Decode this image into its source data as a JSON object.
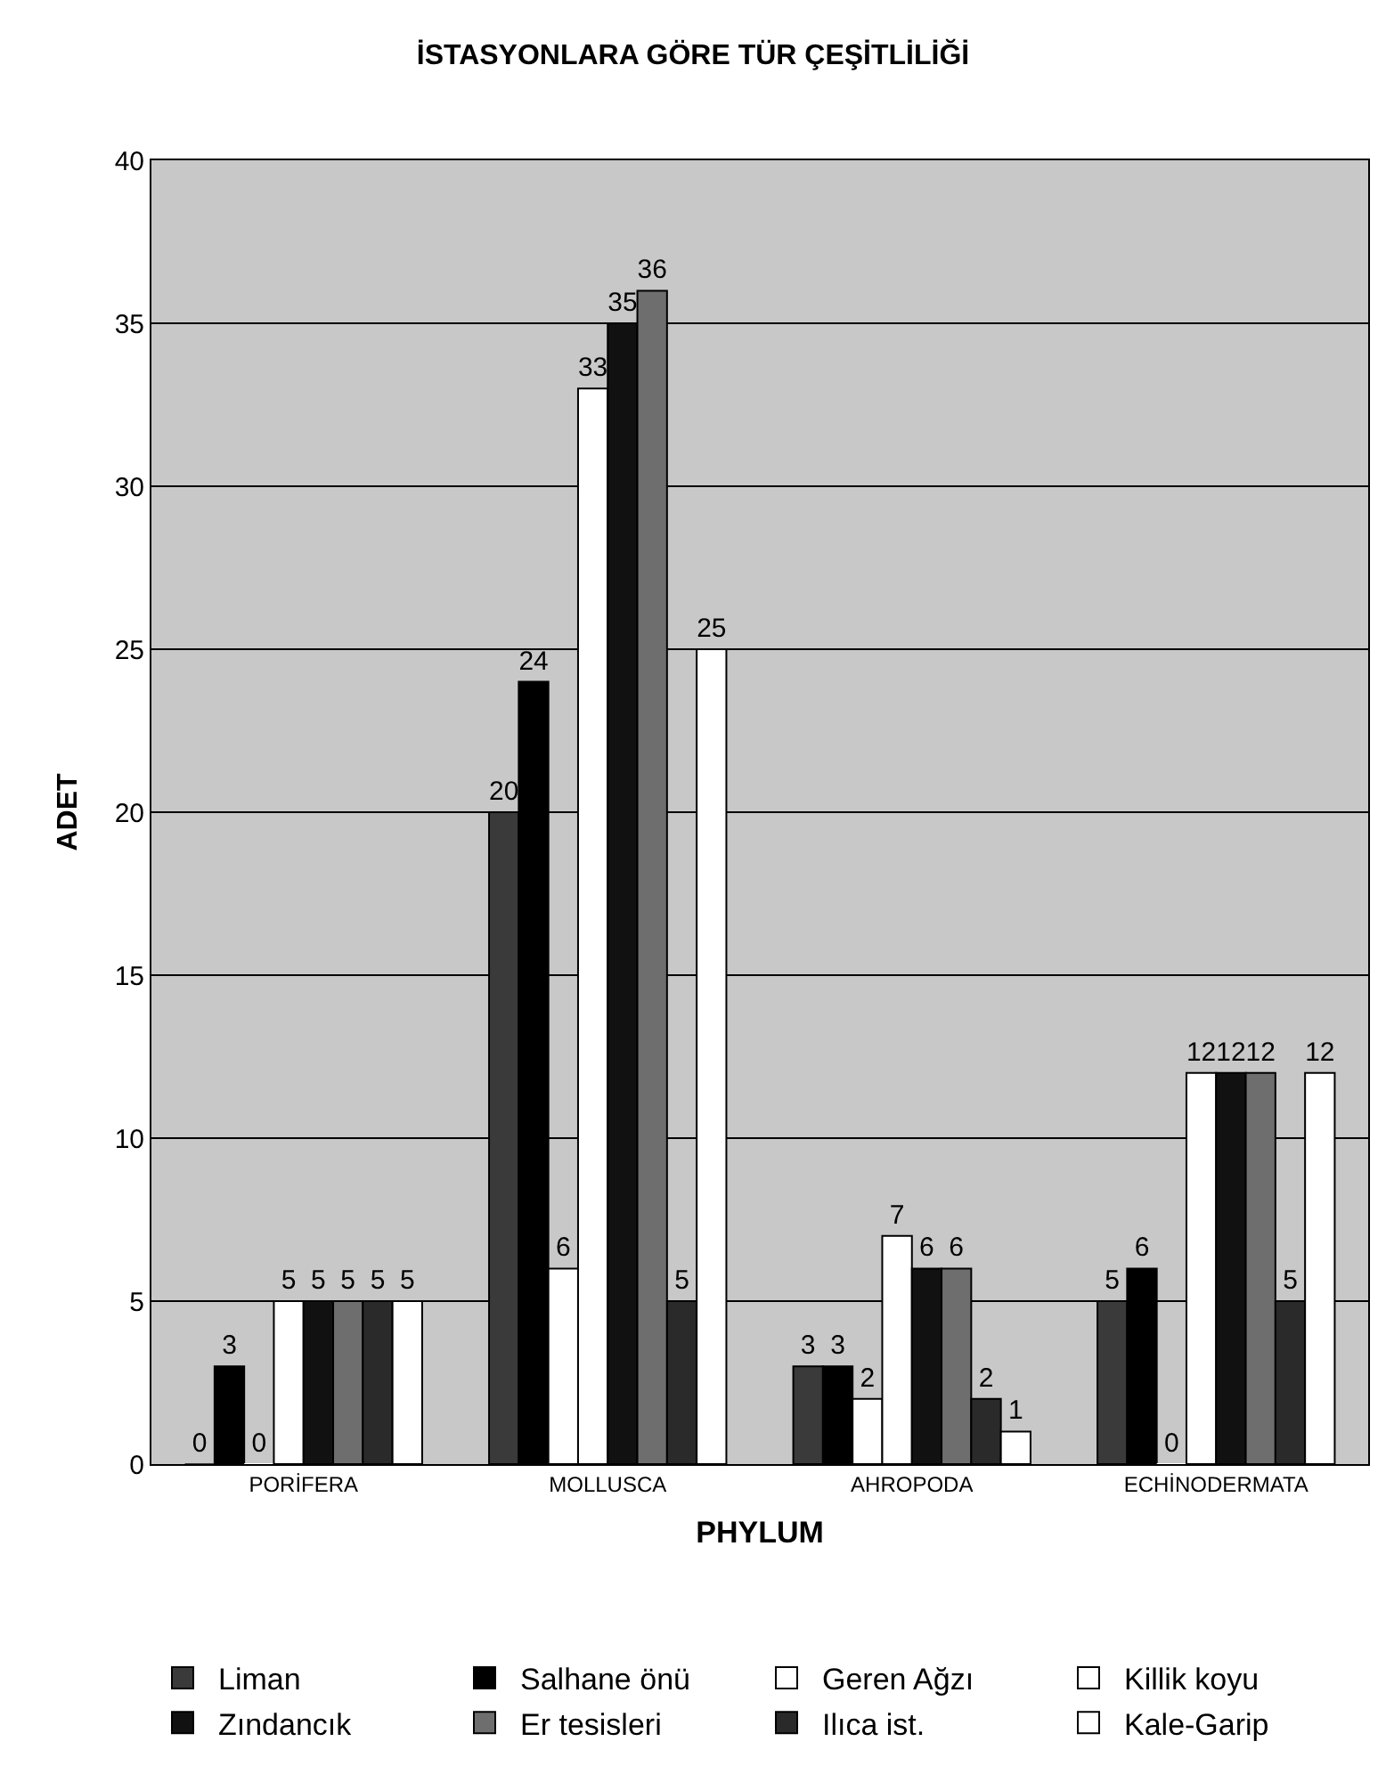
{
  "chart_data": {
    "type": "bar",
    "title": "İSTASYONLARA GÖRE TÜR ÇEŞİTLİLİĞİ",
    "xlabel": "PHYLUM",
    "ylabel": "ADET",
    "categories": [
      "PORİFERA",
      "MOLLUSCA",
      "AHROPODA",
      "ECHİNODERMATA"
    ],
    "series": [
      {
        "name": "Liman",
        "color": "#3a3a3a",
        "values": [
          0,
          20,
          3,
          5
        ]
      },
      {
        "name": "Salhane önü",
        "color": "#000000",
        "values": [
          3,
          24,
          3,
          6
        ]
      },
      {
        "name": "Geren Ağzı",
        "color": "#ffffff",
        "values": [
          0,
          6,
          2,
          0
        ]
      },
      {
        "name": "Killik koyu",
        "color": "#ffffff",
        "values": [
          5,
          33,
          7,
          12
        ]
      },
      {
        "name": "Zındancık",
        "color": "#111111",
        "values": [
          5,
          35,
          6,
          12
        ]
      },
      {
        "name": "Er tesisleri",
        "color": "#6e6e6e",
        "values": [
          5,
          36,
          6,
          12
        ]
      },
      {
        "name": "Ilıca ist.",
        "color": "#2a2a2a",
        "values": [
          5,
          5,
          2,
          5
        ]
      },
      {
        "name": "Kale-Garip",
        "color": "#ffffff",
        "values": [
          5,
          25,
          1,
          12
        ]
      }
    ],
    "ylim": [
      0,
      40
    ],
    "yticks": [
      0,
      5,
      10,
      15,
      20,
      25,
      30,
      35,
      40
    ],
    "grid": "y",
    "legend": "bottom",
    "data_labels": true
  }
}
